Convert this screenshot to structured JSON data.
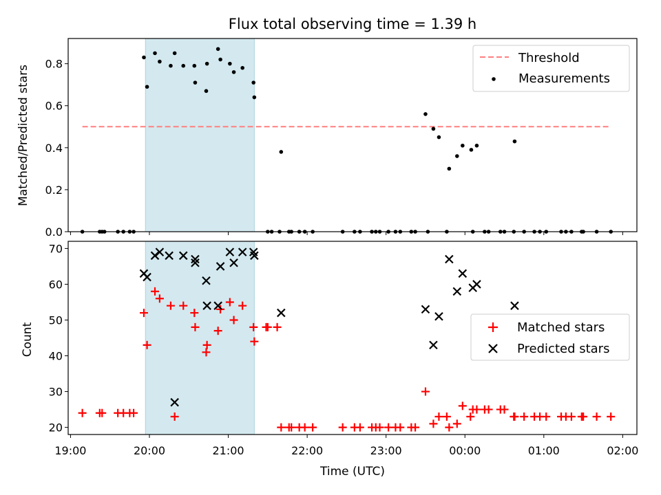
{
  "title": "Flux total observing time = 1.39 h",
  "chart_data": [
    {
      "type": "scatter",
      "ylabel": "Matched/Predicted stars",
      "xlim_hours": [
        18.97,
        26.18
      ],
      "ylim": [
        0,
        0.92
      ],
      "yticks": [
        "0.0",
        "0.2",
        "0.4",
        "0.6",
        "0.8"
      ],
      "ytick_values": [
        0,
        0.2,
        0.4,
        0.6,
        0.8
      ],
      "grid": false,
      "legend_position": "top-right",
      "shaded_interval_hours": [
        19.95,
        21.33
      ],
      "shade_color": "#d3e9ef",
      "threshold": {
        "name": "Threshold",
        "y": 0.5,
        "x": [
          19.15,
          25.85
        ],
        "color": "#ff7f7f",
        "style": "dashed"
      },
      "series": [
        {
          "name": "Measurements",
          "color": "#000000",
          "marker": "dot",
          "x": [
            19.15,
            19.37,
            19.4,
            19.43,
            19.6,
            19.67,
            19.75,
            19.8,
            19.93,
            19.97,
            20.07,
            20.13,
            20.27,
            20.32,
            20.43,
            20.57,
            20.58,
            20.72,
            20.73,
            20.87,
            20.9,
            21.02,
            21.07,
            21.18,
            21.32,
            21.33,
            21.5,
            21.55,
            21.65,
            21.67,
            21.77,
            21.8,
            21.9,
            21.97,
            22.07,
            22.45,
            22.6,
            22.67,
            22.82,
            22.87,
            22.92,
            23.03,
            23.12,
            23.18,
            23.32,
            23.37,
            23.53,
            23.5,
            23.6,
            23.67,
            23.77,
            23.8,
            23.9,
            23.97,
            24.08,
            24.1,
            24.15,
            24.25,
            24.3,
            24.45,
            24.5,
            24.62,
            24.63,
            24.75,
            24.88,
            24.95,
            25.03,
            25.22,
            25.28,
            25.35,
            25.48,
            25.5,
            25.67,
            25.85
          ],
          "y": [
            0,
            0,
            0,
            0,
            0,
            0,
            0,
            0,
            0.83,
            0.69,
            0.85,
            0.81,
            0.79,
            0.85,
            0.79,
            0.79,
            0.71,
            0.67,
            0.8,
            0.87,
            0.82,
            0.8,
            0.76,
            0.78,
            0.71,
            0.64,
            0,
            0,
            0,
            0.38,
            0,
            0,
            0,
            0,
            0,
            0,
            0,
            0,
            0,
            0,
            0,
            0,
            0,
            0,
            0,
            0,
            0,
            0.56,
            0.49,
            0.45,
            0,
            0.3,
            0.36,
            0.41,
            0.39,
            0,
            0.41,
            0,
            0,
            0,
            0,
            0,
            0.43,
            0,
            0,
            0,
            0,
            0,
            0,
            0,
            0,
            0,
            0,
            0
          ]
        }
      ]
    },
    {
      "type": "scatter",
      "xlabel": "Time (UTC)",
      "ylabel": "Count",
      "xlim_hours": [
        18.97,
        26.18
      ],
      "ylim": [
        18,
        72
      ],
      "yticks": [
        "20",
        "30",
        "40",
        "50",
        "60",
        "70"
      ],
      "ytick_values": [
        20,
        30,
        40,
        50,
        60,
        70
      ],
      "xticks": [
        "19:00",
        "20:00",
        "21:00",
        "22:00",
        "23:00",
        "00:00",
        "01:00",
        "02:00"
      ],
      "xtick_values": [
        19,
        20,
        21,
        22,
        23,
        24,
        25,
        26
      ],
      "grid": false,
      "legend_position": "center-right",
      "shaded_interval_hours": [
        19.95,
        21.33
      ],
      "shade_color": "#d3e9ef",
      "series": [
        {
          "name": "Matched stars",
          "color": "#ff0000",
          "marker": "plus",
          "x": [
            19.15,
            19.37,
            19.4,
            19.6,
            19.67,
            19.75,
            19.8,
            19.93,
            19.97,
            20.07,
            20.13,
            20.27,
            20.32,
            20.43,
            20.57,
            20.58,
            20.72,
            20.73,
            20.87,
            20.9,
            21.02,
            21.07,
            21.18,
            21.32,
            21.33,
            21.48,
            21.5,
            21.62,
            21.67,
            21.77,
            21.8,
            21.9,
            21.97,
            22.07,
            22.45,
            22.6,
            22.67,
            22.82,
            22.87,
            22.92,
            23.03,
            23.12,
            23.18,
            23.32,
            23.37,
            23.5,
            23.6,
            23.67,
            23.77,
            23.8,
            23.9,
            23.97,
            24.07,
            24.1,
            24.15,
            24.25,
            24.3,
            24.45,
            24.5,
            24.62,
            24.63,
            24.75,
            24.88,
            24.95,
            25.03,
            25.22,
            25.28,
            25.35,
            25.48,
            25.5,
            25.67,
            25.85
          ],
          "y": [
            24,
            24,
            24,
            24,
            24,
            24,
            24,
            52,
            43,
            58,
            56,
            54,
            23,
            54,
            52,
            48,
            41,
            43,
            47,
            53,
            55,
            50,
            54,
            48,
            44,
            48,
            48,
            48,
            20,
            20,
            20,
            20,
            20,
            20,
            20,
            20,
            20,
            20,
            20,
            20,
            20,
            20,
            20,
            20,
            20,
            30,
            21,
            23,
            23,
            20,
            21,
            26,
            23,
            25,
            25,
            25,
            25,
            25,
            25,
            23,
            23,
            23,
            23,
            23,
            23,
            23,
            23,
            23,
            23,
            23,
            23,
            23
          ]
        },
        {
          "name": "Predicted stars",
          "color": "#000000",
          "marker": "x",
          "x": [
            19.93,
            19.97,
            20.07,
            20.13,
            20.25,
            20.32,
            20.43,
            20.58,
            20.58,
            20.72,
            20.73,
            20.87,
            20.9,
            21.02,
            21.07,
            21.18,
            21.32,
            21.33,
            21.67,
            23.5,
            23.6,
            23.67,
            23.8,
            23.9,
            23.97,
            24.1,
            24.15,
            24.63
          ],
          "y": [
            63,
            62,
            68,
            69,
            68,
            27,
            68,
            67,
            66,
            61,
            54,
            54,
            65,
            69,
            66,
            69,
            69,
            68,
            52,
            53,
            43,
            51,
            67,
            58,
            63,
            59,
            60,
            54
          ]
        }
      ]
    }
  ]
}
